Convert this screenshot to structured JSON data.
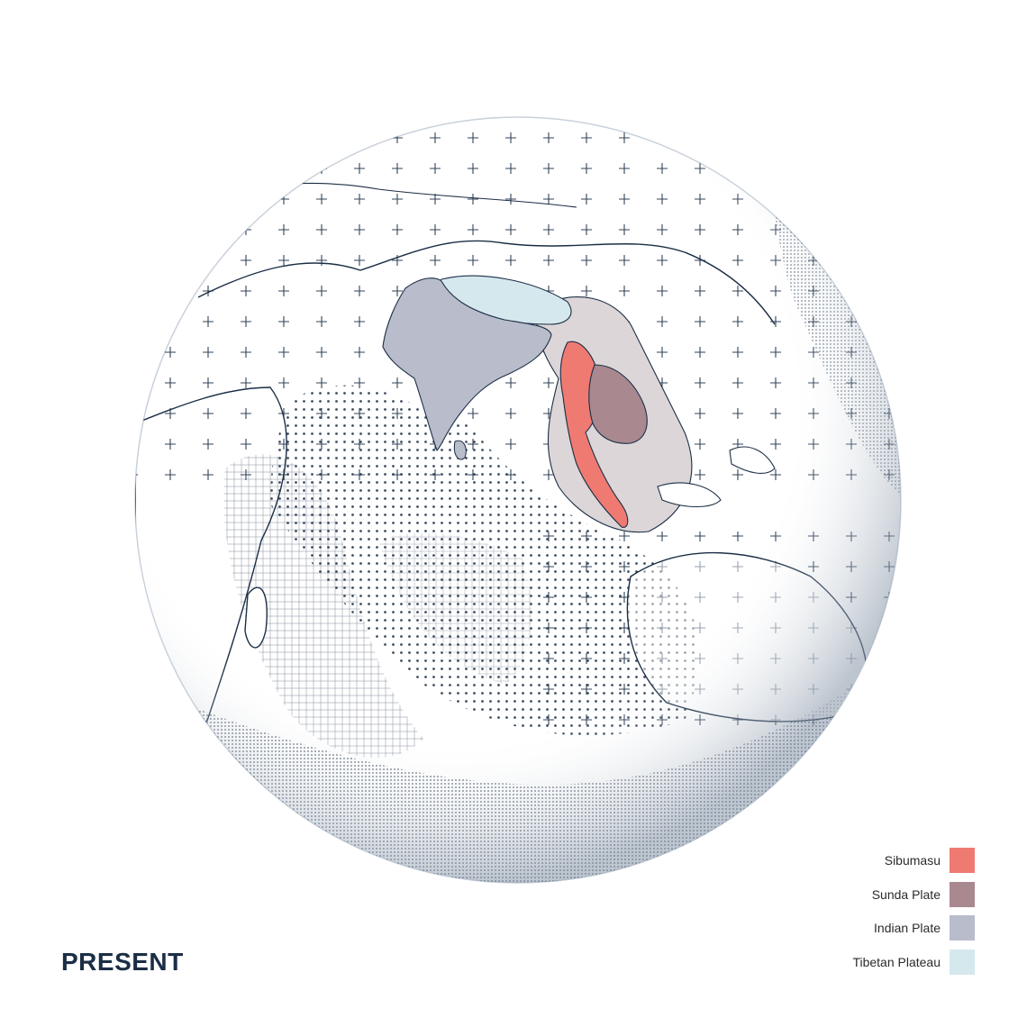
{
  "era": {
    "label": "PRESENT"
  },
  "legend": {
    "items": [
      {
        "name": "Sibumasu",
        "color": "#ef7a72"
      },
      {
        "name": "Sunda Plate",
        "color": "#a98890"
      },
      {
        "name": "Indian Plate",
        "color": "#b8bccb"
      },
      {
        "name": "Tibetan Plateau",
        "color": "#d5e8ee"
      }
    ]
  },
  "colors": {
    "ink": "#1b2e45",
    "ocean_shade": "#c8d0da",
    "sibumasu": "#ef7a72",
    "sunda_plate": "#a98890",
    "indian_plate": "#b8bccb",
    "tibetan_plateau": "#d5e8ee",
    "surrounding_crust": "#dcd6d8"
  }
}
